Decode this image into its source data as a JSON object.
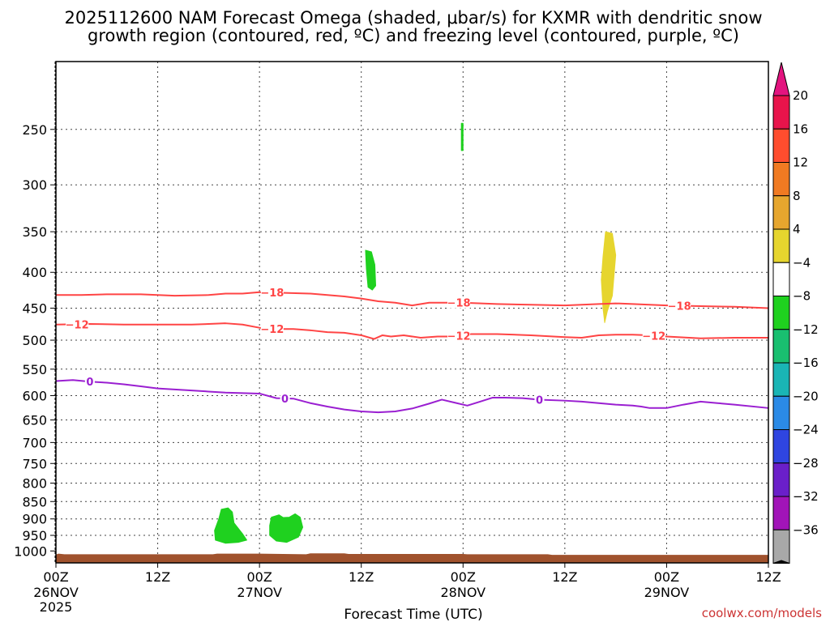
{
  "chart_data": {
    "type": "time-height cross section",
    "title_line1": "2025112600 NAM Forecast Omega (shaded, μbar/s) for KXMR with dendritic snow",
    "title_line2": "growth region (contoured, red, ºC) and freezing level (contoured, purple, ºC)",
    "xlabel": "Forecast Time (UTC)",
    "credit": "coolwx.com/models",
    "x_range_hours": [
      0,
      84
    ],
    "y_range_hpa": [
      1040,
      200
    ],
    "y_ticks": [
      250,
      300,
      350,
      400,
      450,
      500,
      550,
      600,
      650,
      700,
      750,
      800,
      850,
      900,
      950,
      1000
    ],
    "x_ticks": [
      {
        "hour": 0,
        "label": "00Z",
        "date": "26NOV",
        "year": "2025"
      },
      {
        "hour": 12,
        "label": "12Z",
        "date": "",
        "year": ""
      },
      {
        "hour": 24,
        "label": "00Z",
        "date": "27NOV",
        "year": ""
      },
      {
        "hour": 36,
        "label": "12Z",
        "date": "",
        "year": ""
      },
      {
        "hour": 48,
        "label": "00Z",
        "date": "28NOV",
        "year": ""
      },
      {
        "hour": 60,
        "label": "12Z",
        "date": "",
        "year": ""
      },
      {
        "hour": 72,
        "label": "00Z",
        "date": "29NOV",
        "year": ""
      },
      {
        "hour": 84,
        "label": "12Z",
        "date": "",
        "year": ""
      }
    ],
    "colorbar": {
      "labels": [
        "20",
        "16",
        "12",
        "8",
        "4",
        "−4",
        "−8",
        "−12",
        "−16",
        "−20",
        "−24",
        "−28",
        "−32",
        "−36"
      ],
      "colors": [
        "#e8144b",
        "#ff4d2e",
        "#f07a22",
        "#e6a62e",
        "#e6d52e",
        "#ffffff",
        "#1fd11f",
        "#19bf70",
        "#1ab5b5",
        "#2b8ae6",
        "#2f45e0",
        "#6a1fc9",
        "#a114b8",
        "#a8a8a8"
      ],
      "top_arrow_color": "#e3147f",
      "bottom_arrow_color": "#000000"
    },
    "series": [
      {
        "name": "-18",
        "color": "#ff4444",
        "x": [
          0,
          3,
          6,
          10,
          14,
          18,
          20,
          22,
          24,
          27,
          30,
          34,
          36,
          38,
          40,
          42,
          44,
          46,
          48,
          52,
          56,
          60,
          62,
          64,
          66,
          68,
          72,
          76,
          80,
          84
        ],
        "y": [
          431,
          431,
          430,
          430,
          432,
          431,
          429,
          429,
          427,
          428,
          429,
          433,
          436,
          440,
          442,
          446,
          442,
          442,
          442,
          444,
          445,
          446,
          445,
          444,
          443,
          444,
          446,
          447,
          448,
          450
        ],
        "labels": [
          {
            "x": 25.5,
            "text": "−18"
          },
          {
            "x": 47.5,
            "text": "−18"
          },
          {
            "x": 73.5,
            "text": "−18"
          }
        ]
      },
      {
        "name": "-12",
        "color": "#ff4444",
        "x": [
          0,
          4,
          8,
          12,
          16,
          18,
          20,
          22,
          24,
          26,
          28,
          30,
          32,
          34,
          36,
          37.5,
          38.5,
          39.5,
          41,
          43,
          45,
          47,
          49,
          52,
          56,
          60,
          62,
          64,
          66,
          68,
          70,
          72,
          76,
          80,
          84
        ],
        "y": [
          475,
          474,
          475,
          475,
          475,
          474,
          473,
          475,
          480,
          482,
          482,
          484,
          487,
          488,
          492,
          498,
          492,
          494,
          492,
          496,
          494,
          494,
          490,
          490,
          492,
          495,
          496,
          492,
          491,
          491,
          492,
          494,
          497,
          496,
          496
        ],
        "labels": [
          {
            "x": 2.5,
            "text": "−12"
          },
          {
            "x": 25.5,
            "text": "−12"
          },
          {
            "x": 47.5,
            "text": "−12"
          },
          {
            "x": 70.5,
            "text": "−12"
          }
        ]
      },
      {
        "name": "0",
        "color": "#9a1fd1",
        "x": [
          0,
          2,
          4,
          6,
          8,
          10,
          12,
          14,
          16,
          18,
          20,
          22,
          24,
          26,
          28,
          30,
          32,
          34,
          36,
          38,
          40,
          42,
          44,
          45.5,
          47,
          48.5,
          50,
          51.5,
          53,
          55,
          57,
          60,
          62,
          64,
          66,
          68,
          69,
          70,
          72,
          74,
          76,
          78,
          80,
          84
        ],
        "y": [
          572,
          570,
          573,
          575,
          578,
          582,
          586,
          588,
          590,
          592,
          594,
          595,
          596,
          605,
          606,
          615,
          622,
          628,
          632,
          634,
          632,
          626,
          616,
          608,
          614,
          620,
          612,
          604,
          604,
          605,
          608,
          610,
          612,
          615,
          618,
          620,
          622,
          625,
          625,
          618,
          612,
          615,
          618,
          625
        ],
        "labels": [
          {
            "x": 4,
            "text": "0"
          },
          {
            "x": 27,
            "text": "0"
          },
          {
            "x": 57,
            "text": "0"
          }
        ]
      }
    ],
    "omega_blobs": [
      {
        "color": "#1fd11f",
        "band": "-8 to -4",
        "x": [
          47.8,
          48.0,
          48.0,
          47.8
        ],
        "y": [
          245,
          245,
          268,
          268
        ]
      },
      {
        "color": "#1fd11f",
        "band": "-8 to -4",
        "x": [
          36.5,
          37.2,
          37.6,
          37.7,
          37.3,
          36.8,
          36.6
        ],
        "y": [
          372,
          374,
          390,
          418,
          424,
          420,
          395
        ]
      },
      {
        "color": "#e6d52e",
        "band": "4 to 8",
        "x": [
          64.8,
          65.6,
          66.0,
          65.6,
          65.0,
          64.7,
          64.5,
          64.3,
          64.5
        ],
        "y": [
          350,
          352,
          378,
          432,
          455,
          472,
          450,
          410,
          380
        ]
      },
      {
        "color": "#1fd11f",
        "band": "-8 to -4",
        "x": [
          19.5,
          20.3,
          20.8,
          21.0,
          22.0,
          22.5,
          21.5,
          20.0,
          18.8,
          18.7,
          19.2
        ],
        "y": [
          872,
          868,
          880,
          912,
          945,
          965,
          972,
          975,
          965,
          935,
          900
        ]
      },
      {
        "color": "#1fd11f",
        "band": "-8 to -4",
        "x": [
          25.4,
          26.3,
          26.8,
          27.5,
          28.2,
          28.8,
          29.1,
          28.6,
          27.2,
          26.0,
          25.2,
          25.2
        ],
        "y": [
          895,
          888,
          896,
          895,
          885,
          895,
          925,
          955,
          972,
          968,
          950,
          920
        ]
      }
    ],
    "terrain": {
      "color": "#a0522d",
      "x": [
        0,
        0.3,
        1,
        10,
        18.5,
        19,
        24,
        29.5,
        30,
        34,
        34.5,
        48,
        48.5,
        58,
        58.5,
        84
      ],
      "y": [
        1012,
        1009,
        1011,
        1011,
        1011,
        1009,
        1009,
        1011,
        1008,
        1008,
        1010,
        1010,
        1011,
        1011,
        1013,
        1013
      ]
    }
  }
}
